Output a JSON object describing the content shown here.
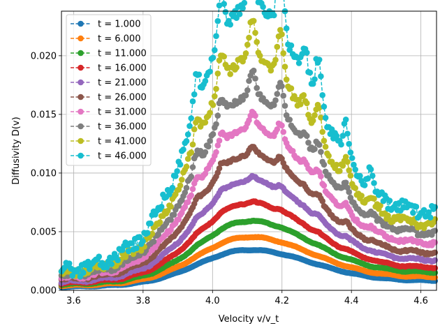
{
  "chart_data": {
    "type": "line",
    "title": "",
    "xlabel": "Velocity v/v_t",
    "ylabel": "Diffusivity D(v)",
    "xlim": [
      3.565,
      4.645
    ],
    "ylim": [
      0,
      0.0238
    ],
    "xticks": [
      "3.6",
      "3.8",
      "4.0",
      "4.2",
      "4.4",
      "4.6"
    ],
    "yticks": [
      "0.000",
      "0.005",
      "0.010",
      "0.015",
      "0.020"
    ],
    "grid": true,
    "legend": "upper-left",
    "marker": "circle",
    "linestyle": "dashed",
    "series": [
      {
        "name": "t = 1.000",
        "color": "#1f77b4",
        "amplitude": 0.0029,
        "baseline": 0.0003,
        "end": 0.0008
      },
      {
        "name": "t = 6.000",
        "color": "#ff7f0e",
        "amplitude": 0.0038,
        "baseline": 0.0004,
        "end": 0.0011
      },
      {
        "name": "t = 11.000",
        "color": "#2ca02c",
        "amplitude": 0.0049,
        "baseline": 0.0005,
        "end": 0.0015
      },
      {
        "name": "t = 16.000",
        "color": "#d62728",
        "amplitude": 0.0062,
        "baseline": 0.0006,
        "end": 0.0019
      },
      {
        "name": "t = 21.000",
        "color": "#9467bd",
        "amplitude": 0.0078,
        "baseline": 0.0007,
        "end": 0.0025
      },
      {
        "name": "t = 26.000",
        "color": "#8c564b",
        "amplitude": 0.0096,
        "baseline": 0.0009,
        "end": 0.0031
      },
      {
        "name": "t = 31.000",
        "color": "#e377c2",
        "amplitude": 0.0115,
        "baseline": 0.001,
        "end": 0.0039
      },
      {
        "name": "t = 36.000",
        "color": "#7f7f7f",
        "amplitude": 0.0137,
        "baseline": 0.0012,
        "end": 0.0047
      },
      {
        "name": "t = 41.000",
        "color": "#bcbd22",
        "amplitude": 0.0165,
        "baseline": 0.0014,
        "end": 0.0055
      },
      {
        "name": "t = 46.000",
        "color": "#17becf",
        "amplitude": 0.0205,
        "baseline": 0.0016,
        "end": 0.0064
      }
    ]
  }
}
